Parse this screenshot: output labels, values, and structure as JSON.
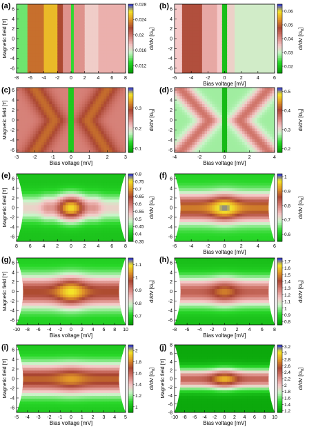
{
  "chart_data": [
    {
      "type": "heatmap",
      "panel_label": "(a)",
      "xlabel": "",
      "ylabel": "Magnetic field [T]",
      "zlabel": "dI/dV [G",
      "xlim": [
        -8,
        8
      ],
      "ylim": [
        -7,
        7
      ],
      "x_ticks": [
        -8,
        -6,
        -4,
        -2,
        0,
        2,
        4,
        6,
        8
      ],
      "y_ticks": [
        -6,
        -4,
        -2,
        0,
        2,
        4,
        6
      ],
      "zlim": [
        0.01,
        0.028
      ],
      "z_ticks": [
        "0.012",
        "0.016",
        "0.02",
        "0.024",
        "0.028"
      ],
      "shape": "rect",
      "pattern": "bands",
      "bands": [
        {
          "x0": -8,
          "x1": -6.5,
          "z": 0.014
        },
        {
          "x0": -6.5,
          "x1": -4,
          "z": 0.023
        },
        {
          "x0": -4,
          "x1": -2,
          "z": 0.025
        },
        {
          "x0": -2,
          "x1": -1,
          "z": 0.022
        },
        {
          "x0": -1,
          "x1": 0,
          "z": 0.019
        },
        {
          "x0": 0,
          "x1": 0.4,
          "z": 0.013
        },
        {
          "x0": 0.4,
          "x1": 2,
          "z": 0.019
        },
        {
          "x0": 2,
          "x1": 4,
          "z": 0.017
        },
        {
          "x0": 4,
          "x1": 8,
          "z": 0.018
        }
      ]
    },
    {
      "type": "heatmap",
      "panel_label": "(b)",
      "xlabel": "Bias voltage [mV]",
      "ylabel": "",
      "zlabel": "dI/dV [G",
      "xlim": [
        -7,
        7
      ],
      "ylim": [
        -7,
        7
      ],
      "x_ticks": [
        -6,
        -4,
        -2,
        0,
        2,
        4,
        6
      ],
      "y_ticks": [
        -6,
        -4,
        -2,
        0,
        2,
        4,
        6
      ],
      "zlim": [
        0.015,
        0.065
      ],
      "z_ticks": [
        "0.02",
        "0.03",
        "0.04",
        "0.05",
        "0.06"
      ],
      "shape": "rect",
      "pattern": "bands",
      "bands": [
        {
          "x0": -7,
          "x1": -6,
          "z": 0.035
        },
        {
          "x0": -6,
          "x1": -3,
          "z": 0.047
        },
        {
          "x0": -3,
          "x1": -1,
          "z": 0.038
        },
        {
          "x0": -1,
          "x1": -0.2,
          "z": 0.035
        },
        {
          "x0": -0.2,
          "x1": 0.2,
          "z": 0.02
        },
        {
          "x0": 0.2,
          "x1": 1.5,
          "z": 0.034
        },
        {
          "x0": 1.5,
          "x1": 7,
          "z": 0.031
        }
      ]
    },
    {
      "type": "heatmap",
      "panel_label": "(c)",
      "xlabel": "Bias voltage [mV]",
      "ylabel": "Magnetic field [T]",
      "zlabel": "dI/dV [G",
      "xlim": [
        -3.5,
        3.5
      ],
      "ylim": [
        -6.5,
        6.5
      ],
      "x_ticks": [
        -3,
        -2,
        -1,
        0,
        1,
        2,
        3
      ],
      "y_ticks": [
        -6,
        -4,
        -2,
        0,
        2,
        4,
        6
      ],
      "zlim": [
        0.08,
        0.4
      ],
      "z_ticks": [
        "0.1",
        "0.2",
        "0.3"
      ],
      "shape": "rect",
      "pattern": "cross",
      "base": 0.25,
      "cross": 0.31,
      "center": 0.12,
      "cross_slope": 0.35
    },
    {
      "type": "heatmap",
      "panel_label": "(d)",
      "xlabel": "Bias voltage [mV]",
      "ylabel": "",
      "zlabel": "dI/dV [G",
      "xlim": [
        -5.2,
        5.2
      ],
      "ylim": [
        -6.5,
        6.5
      ],
      "x_ticks": [
        -4,
        -2,
        0,
        2,
        4
      ],
      "y_ticks": [
        -6,
        -4,
        -2,
        0,
        2,
        4,
        6
      ],
      "zlim": [
        0.18,
        0.52
      ],
      "z_ticks": [
        "0.2",
        "0.3",
        "0.4",
        "0.5"
      ],
      "shape": "rect",
      "pattern": "cross",
      "base": 0.27,
      "cross": 0.37,
      "center": 0.21,
      "cross_slope": 0.55
    },
    {
      "type": "heatmap",
      "panel_label": "(e)",
      "xlabel": "",
      "ylabel": "Magnetic field [T]",
      "zlabel": "dI/dV [G",
      "xlim": [
        -8,
        8
      ],
      "ylim": [
        -7,
        7
      ],
      "x_ticks": [
        8,
        6,
        4,
        2,
        0,
        2,
        4,
        6,
        8
      ],
      "y_ticks": [
        -6,
        -4,
        -2,
        0,
        2,
        4,
        6
      ],
      "zlim": [
        0.35,
        0.8
      ],
      "z_ticks": [
        "0.35",
        "0.4",
        "0.45",
        "0.5",
        "0.55",
        "0.6",
        "0.65",
        "0.7",
        "0.75",
        "0.8"
      ],
      "shape": "hourglass",
      "pattern": "blob",
      "base": 0.4,
      "band": 0.52,
      "peak": 0.75,
      "band_width": 1.8
    },
    {
      "type": "heatmap",
      "panel_label": "(f)",
      "xlabel": "Bias voltage [mV]",
      "ylabel": "",
      "zlabel": "dI/dV [G",
      "xlim": [
        -6.5,
        6.5
      ],
      "ylim": [
        -7,
        7
      ],
      "x_ticks": [
        -6,
        -4,
        -2,
        0,
        2,
        4,
        6
      ],
      "y_ticks": [
        -6,
        -4,
        -2,
        0,
        2,
        4,
        6
      ],
      "zlim": [
        0.55,
        1.02
      ],
      "z_ticks": [
        "0.6",
        "0.7",
        "0.8",
        "0.9",
        "1"
      ],
      "shape": "hourglass",
      "pattern": "band",
      "base": 0.62,
      "band": 0.9,
      "peak": 1.0,
      "band_width": 2.0
    },
    {
      "type": "heatmap",
      "panel_label": "(g)",
      "xlabel": "Bias voltage [mV]",
      "ylabel": "Magnetic field [T]",
      "zlabel": "dI/dV [G",
      "xlim": [
        -10,
        10
      ],
      "ylim": [
        -7,
        7
      ],
      "x_ticks": [
        -10,
        -8,
        -6,
        -4,
        -2,
        0,
        2,
        4,
        6,
        8,
        10
      ],
      "y_ticks": [
        -6,
        -4,
        -2,
        0,
        2,
        4,
        6
      ],
      "zlim": [
        0.63,
        1.15
      ],
      "z_ticks": [
        "0.7",
        "0.8",
        "0.9",
        "1",
        "1.1"
      ],
      "shape": "hourglass",
      "pattern": "band",
      "base": 0.7,
      "band": 0.98,
      "peak": 1.1,
      "band_width": 2.2
    },
    {
      "type": "heatmap",
      "panel_label": "(h)",
      "xlabel": "Bias voltage [mV]",
      "ylabel": "",
      "zlabel": "dI/dV [G",
      "xlim": [
        -9,
        9
      ],
      "ylim": [
        -7,
        7
      ],
      "x_ticks": [
        -8,
        -6,
        -4,
        -2,
        0,
        2,
        4,
        6,
        8
      ],
      "y_ticks": [
        -6,
        -4,
        -2,
        0,
        2,
        4,
        6
      ],
      "zlim": [
        0.75,
        1.75
      ],
      "z_ticks": [
        "0.8",
        "0.9",
        "1",
        "1.1",
        "1.2",
        "1.3",
        "1.4",
        "1.5",
        "1.6",
        "1.7"
      ],
      "shape": "hourglass",
      "pattern": "band",
      "base": 0.85,
      "band": 1.35,
      "peak": 1.5,
      "band_width": 2.0
    },
    {
      "type": "heatmap",
      "panel_label": "(i)",
      "xlabel": "Bias voltage [mV]",
      "ylabel": "Magnetic field [T]",
      "zlabel": "dI/dV [G",
      "xlim": [
        -5,
        5
      ],
      "ylim": [
        -7,
        7
      ],
      "x_ticks": [
        -5,
        -4,
        -3,
        -2,
        -1,
        0,
        1,
        2,
        3,
        4,
        5
      ],
      "y_ticks": [
        -6,
        -4,
        -2,
        0,
        2,
        4,
        6
      ],
      "zlim": [
        0.9,
        2.1
      ],
      "z_ticks": [
        "1",
        "1.2",
        "1.4",
        "1.6",
        "1.8",
        "2"
      ],
      "shape": "hourglass",
      "pattern": "band",
      "base": 1.05,
      "band": 1.75,
      "peak": 1.85,
      "band_width": 2.1
    },
    {
      "type": "heatmap",
      "panel_label": "(j)",
      "xlabel": "Bias voltage [mV]",
      "ylabel": "Magnetic field [T]",
      "zlabel": "dI/dV [G",
      "xlim": [
        -10,
        10
      ],
      "ylim": [
        -8,
        8
      ],
      "x_ticks": [
        -10,
        -8,
        -6,
        -4,
        -2,
        0,
        2,
        4,
        6,
        8,
        10
      ],
      "y_ticks": [
        -8,
        -6,
        -4,
        -2,
        0,
        2,
        4,
        6,
        8
      ],
      "zlim": [
        1.15,
        3.25
      ],
      "z_ticks": [
        "1.2",
        "1.4",
        "1.6",
        "1.8",
        "2",
        "2.2",
        "2.4",
        "2.6",
        "2.8",
        "3",
        "3.2"
      ],
      "shape": "hourglass",
      "pattern": "band",
      "base": 1.25,
      "band": 2.4,
      "peak": 2.9,
      "band_width": 1.6
    }
  ]
}
